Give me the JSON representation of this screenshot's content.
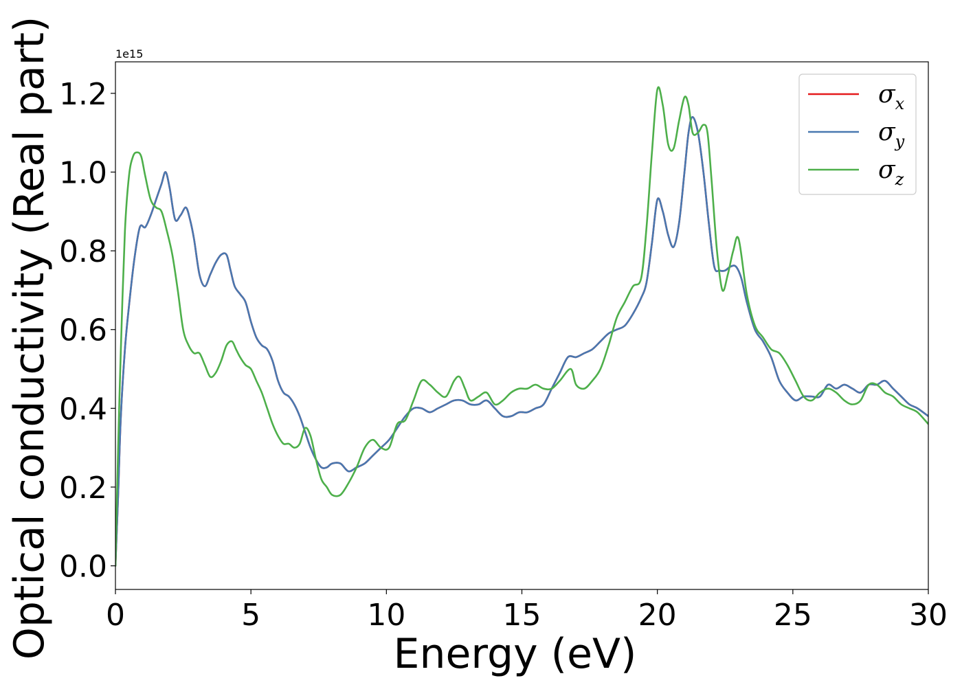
{
  "chart_data": {
    "type": "line",
    "title": "",
    "xlabel": "Energy (eV)",
    "ylabel": "Optical conductivity (Real part)",
    "offset_label": "1e15",
    "y_scale_factor": 1000000000000000.0,
    "xlim": [
      0,
      30
    ],
    "ylim": [
      -0.06,
      1.28
    ],
    "x_ticks": [
      0,
      5,
      10,
      15,
      20,
      25,
      30
    ],
    "x_tick_labels": [
      "0",
      "5",
      "10",
      "15",
      "20",
      "25",
      "30"
    ],
    "y_ticks": [
      0.0,
      0.2,
      0.4,
      0.6,
      0.8,
      1.0,
      1.2
    ],
    "y_tick_labels": [
      "0.0",
      "0.2",
      "0.4",
      "0.6",
      "0.8",
      "1.0",
      "1.2"
    ],
    "grid": false,
    "legend_position": "top-right",
    "series": [
      {
        "name": "σx",
        "symbol": "σ",
        "subscript": "x",
        "color": "#e41a1c",
        "x": [
          0,
          0.1,
          0.2,
          0.35,
          0.5,
          0.7,
          0.9,
          1.1,
          1.3,
          1.5,
          1.7,
          1.85,
          2.0,
          2.2,
          2.4,
          2.6,
          2.75,
          2.9,
          3.1,
          3.3,
          3.5,
          3.7,
          3.9,
          4.1,
          4.25,
          4.4,
          4.6,
          4.8,
          5.0,
          5.2,
          5.4,
          5.6,
          5.8,
          6.0,
          6.2,
          6.4,
          6.6,
          6.8,
          7.0,
          7.2,
          7.4,
          7.6,
          7.8,
          8.0,
          8.3,
          8.6,
          8.9,
          9.2,
          9.5,
          9.8,
          10.1,
          10.4,
          10.7,
          11.0,
          11.3,
          11.6,
          11.9,
          12.2,
          12.5,
          12.8,
          13.1,
          13.4,
          13.7,
          14.0,
          14.3,
          14.6,
          14.9,
          15.2,
          15.5,
          15.8,
          16.1,
          16.4,
          16.7,
          17.0,
          17.3,
          17.6,
          17.9,
          18.2,
          18.5,
          18.8,
          19.1,
          19.4,
          19.6,
          19.8,
          20.0,
          20.2,
          20.4,
          20.6,
          20.8,
          21.0,
          21.15,
          21.3,
          21.5,
          21.7,
          21.9,
          22.1,
          22.3,
          22.5,
          22.7,
          22.9,
          23.1,
          23.3,
          23.6,
          23.9,
          24.2,
          24.5,
          24.8,
          25.1,
          25.4,
          25.7,
          26.0,
          26.3,
          26.6,
          26.9,
          27.2,
          27.5,
          27.8,
          28.1,
          28.4,
          28.7,
          29.0,
          29.3,
          29.6,
          30.0
        ],
        "y": [
          0.0,
          0.18,
          0.38,
          0.55,
          0.66,
          0.78,
          0.86,
          0.86,
          0.89,
          0.93,
          0.97,
          1.0,
          0.96,
          0.88,
          0.89,
          0.91,
          0.88,
          0.83,
          0.74,
          0.71,
          0.74,
          0.77,
          0.79,
          0.79,
          0.75,
          0.71,
          0.69,
          0.67,
          0.62,
          0.58,
          0.56,
          0.55,
          0.52,
          0.47,
          0.44,
          0.43,
          0.41,
          0.38,
          0.34,
          0.3,
          0.27,
          0.25,
          0.25,
          0.26,
          0.26,
          0.24,
          0.25,
          0.26,
          0.28,
          0.3,
          0.32,
          0.35,
          0.38,
          0.4,
          0.4,
          0.39,
          0.4,
          0.41,
          0.42,
          0.42,
          0.41,
          0.41,
          0.42,
          0.4,
          0.38,
          0.38,
          0.39,
          0.39,
          0.4,
          0.41,
          0.45,
          0.49,
          0.53,
          0.53,
          0.54,
          0.55,
          0.57,
          0.59,
          0.6,
          0.61,
          0.64,
          0.68,
          0.72,
          0.82,
          0.93,
          0.9,
          0.84,
          0.81,
          0.87,
          1.0,
          1.1,
          1.14,
          1.1,
          1.0,
          0.87,
          0.76,
          0.75,
          0.75,
          0.76,
          0.76,
          0.73,
          0.67,
          0.6,
          0.57,
          0.53,
          0.47,
          0.44,
          0.42,
          0.43,
          0.43,
          0.43,
          0.46,
          0.45,
          0.46,
          0.45,
          0.44,
          0.46,
          0.46,
          0.47,
          0.45,
          0.43,
          0.41,
          0.4,
          0.38
        ]
      },
      {
        "name": "σy",
        "symbol": "σ",
        "subscript": "y",
        "color": "#4878b0",
        "x": [
          0,
          0.1,
          0.2,
          0.35,
          0.5,
          0.7,
          0.9,
          1.1,
          1.3,
          1.5,
          1.7,
          1.85,
          2.0,
          2.2,
          2.4,
          2.6,
          2.75,
          2.9,
          3.1,
          3.3,
          3.5,
          3.7,
          3.9,
          4.1,
          4.25,
          4.4,
          4.6,
          4.8,
          5.0,
          5.2,
          5.4,
          5.6,
          5.8,
          6.0,
          6.2,
          6.4,
          6.6,
          6.8,
          7.0,
          7.2,
          7.4,
          7.6,
          7.8,
          8.0,
          8.3,
          8.6,
          8.9,
          9.2,
          9.5,
          9.8,
          10.1,
          10.4,
          10.7,
          11.0,
          11.3,
          11.6,
          11.9,
          12.2,
          12.5,
          12.8,
          13.1,
          13.4,
          13.7,
          14.0,
          14.3,
          14.6,
          14.9,
          15.2,
          15.5,
          15.8,
          16.1,
          16.4,
          16.7,
          17.0,
          17.3,
          17.6,
          17.9,
          18.2,
          18.5,
          18.8,
          19.1,
          19.4,
          19.6,
          19.8,
          20.0,
          20.2,
          20.4,
          20.6,
          20.8,
          21.0,
          21.15,
          21.3,
          21.5,
          21.7,
          21.9,
          22.1,
          22.3,
          22.5,
          22.7,
          22.9,
          23.1,
          23.3,
          23.6,
          23.9,
          24.2,
          24.5,
          24.8,
          25.1,
          25.4,
          25.7,
          26.0,
          26.3,
          26.6,
          26.9,
          27.2,
          27.5,
          27.8,
          28.1,
          28.4,
          28.7,
          29.0,
          29.3,
          29.6,
          30.0
        ],
        "y": [
          0.0,
          0.18,
          0.38,
          0.55,
          0.66,
          0.78,
          0.86,
          0.86,
          0.89,
          0.93,
          0.97,
          1.0,
          0.96,
          0.88,
          0.89,
          0.91,
          0.88,
          0.83,
          0.74,
          0.71,
          0.74,
          0.77,
          0.79,
          0.79,
          0.75,
          0.71,
          0.69,
          0.67,
          0.62,
          0.58,
          0.56,
          0.55,
          0.52,
          0.47,
          0.44,
          0.43,
          0.41,
          0.38,
          0.34,
          0.3,
          0.27,
          0.25,
          0.25,
          0.26,
          0.26,
          0.24,
          0.25,
          0.26,
          0.28,
          0.3,
          0.32,
          0.35,
          0.38,
          0.4,
          0.4,
          0.39,
          0.4,
          0.41,
          0.42,
          0.42,
          0.41,
          0.41,
          0.42,
          0.4,
          0.38,
          0.38,
          0.39,
          0.39,
          0.4,
          0.41,
          0.45,
          0.49,
          0.53,
          0.53,
          0.54,
          0.55,
          0.57,
          0.59,
          0.6,
          0.61,
          0.64,
          0.68,
          0.72,
          0.82,
          0.93,
          0.9,
          0.84,
          0.81,
          0.87,
          1.0,
          1.1,
          1.14,
          1.1,
          1.0,
          0.87,
          0.76,
          0.75,
          0.75,
          0.76,
          0.76,
          0.73,
          0.67,
          0.6,
          0.57,
          0.53,
          0.47,
          0.44,
          0.42,
          0.43,
          0.43,
          0.43,
          0.46,
          0.45,
          0.46,
          0.45,
          0.44,
          0.46,
          0.46,
          0.47,
          0.45,
          0.43,
          0.41,
          0.4,
          0.38
        ]
      },
      {
        "name": "σz",
        "symbol": "σ",
        "subscript": "z",
        "color": "#4daf4a",
        "x": [
          0,
          0.1,
          0.2,
          0.35,
          0.5,
          0.65,
          0.8,
          0.95,
          1.1,
          1.3,
          1.5,
          1.7,
          1.9,
          2.1,
          2.3,
          2.5,
          2.7,
          2.9,
          3.1,
          3.3,
          3.5,
          3.7,
          3.9,
          4.1,
          4.3,
          4.45,
          4.6,
          4.8,
          5.0,
          5.2,
          5.4,
          5.6,
          5.8,
          6.0,
          6.2,
          6.4,
          6.6,
          6.8,
          7.0,
          7.2,
          7.4,
          7.6,
          7.8,
          8.0,
          8.3,
          8.6,
          8.9,
          9.2,
          9.5,
          9.8,
          10.1,
          10.4,
          10.7,
          11.0,
          11.3,
          11.6,
          11.9,
          12.2,
          12.5,
          12.7,
          12.9,
          13.1,
          13.4,
          13.7,
          14.0,
          14.3,
          14.6,
          14.9,
          15.2,
          15.5,
          15.8,
          16.1,
          16.4,
          16.8,
          17.0,
          17.3,
          17.6,
          17.9,
          18.2,
          18.5,
          18.8,
          19.1,
          19.4,
          19.6,
          19.8,
          20.0,
          20.2,
          20.4,
          20.6,
          20.8,
          21.0,
          21.15,
          21.3,
          21.5,
          21.7,
          21.85,
          22.0,
          22.2,
          22.4,
          22.6,
          22.8,
          23.0,
          23.3,
          23.6,
          23.9,
          24.2,
          24.5,
          24.8,
          25.1,
          25.4,
          25.7,
          26.0,
          26.3,
          26.6,
          26.9,
          27.2,
          27.5,
          27.8,
          28.1,
          28.4,
          28.7,
          29.0,
          29.3,
          29.6,
          30.0
        ],
        "y": [
          0.0,
          0.3,
          0.55,
          0.85,
          0.99,
          1.04,
          1.05,
          1.04,
          0.99,
          0.93,
          0.91,
          0.9,
          0.85,
          0.79,
          0.7,
          0.6,
          0.56,
          0.54,
          0.54,
          0.51,
          0.48,
          0.49,
          0.52,
          0.56,
          0.57,
          0.55,
          0.53,
          0.51,
          0.5,
          0.47,
          0.44,
          0.4,
          0.36,
          0.33,
          0.31,
          0.31,
          0.3,
          0.31,
          0.35,
          0.33,
          0.27,
          0.22,
          0.2,
          0.18,
          0.18,
          0.21,
          0.25,
          0.3,
          0.32,
          0.3,
          0.3,
          0.36,
          0.37,
          0.42,
          0.47,
          0.46,
          0.44,
          0.43,
          0.47,
          0.48,
          0.45,
          0.42,
          0.43,
          0.44,
          0.41,
          0.42,
          0.44,
          0.45,
          0.45,
          0.46,
          0.45,
          0.45,
          0.47,
          0.5,
          0.46,
          0.45,
          0.47,
          0.5,
          0.56,
          0.63,
          0.67,
          0.71,
          0.73,
          0.86,
          1.05,
          1.21,
          1.17,
          1.07,
          1.06,
          1.13,
          1.19,
          1.17,
          1.1,
          1.1,
          1.12,
          1.1,
          0.98,
          0.8,
          0.7,
          0.74,
          0.8,
          0.83,
          0.69,
          0.61,
          0.58,
          0.55,
          0.54,
          0.51,
          0.47,
          0.43,
          0.42,
          0.44,
          0.45,
          0.44,
          0.42,
          0.41,
          0.42,
          0.46,
          0.46,
          0.44,
          0.43,
          0.41,
          0.4,
          0.39,
          0.36
        ]
      }
    ]
  }
}
